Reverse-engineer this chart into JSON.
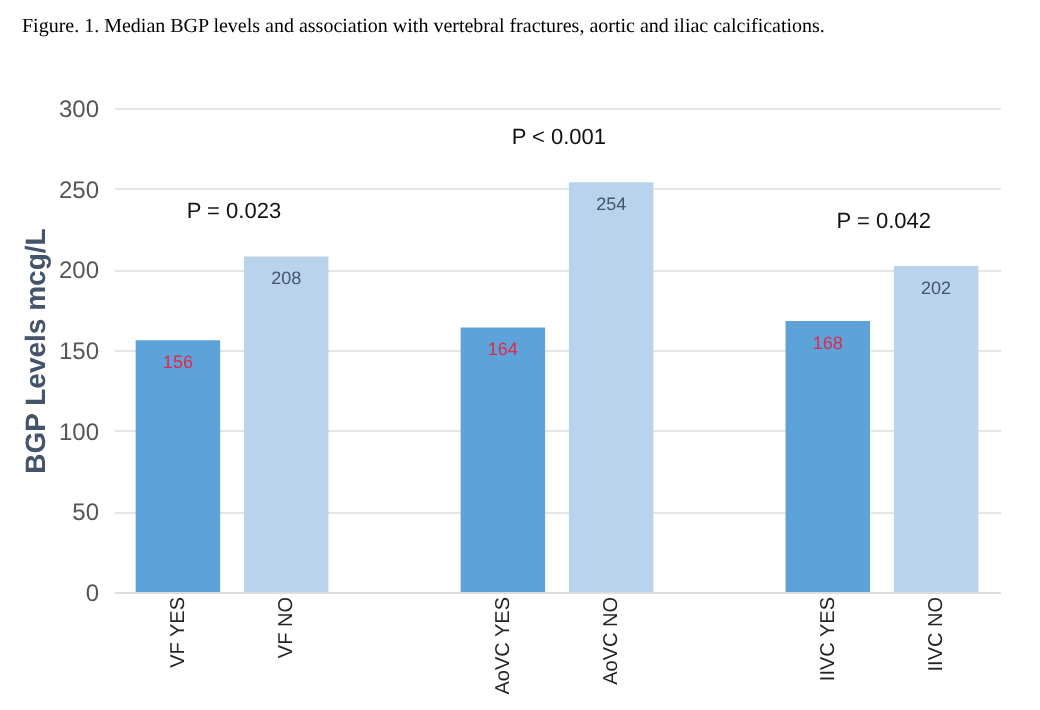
{
  "chart_data": {
    "type": "bar",
    "title": "Figure. 1. Median BGP levels and association with vertebral fractures, aortic and iliac calcifications.",
    "ylabel": "BGP Levels mcg/L",
    "categories": [
      "VF YES",
      "VF NO",
      null,
      "AoVC YES",
      "AoVC NO",
      null,
      "IIVC YES",
      "IIVC NO"
    ],
    "series": [
      {
        "color": "#5da2d8",
        "values": [
          156,
          null,
          null,
          164,
          null,
          null,
          168,
          null
        ]
      },
      {
        "color": "#b9d3ec",
        "values": [
          null,
          208,
          null,
          null,
          254,
          null,
          null,
          202
        ]
      }
    ],
    "data_labels": true,
    "ylim": [
      0,
      300
    ],
    "yticks": [
      0,
      50,
      100,
      150,
      200,
      250,
      300
    ],
    "grid": "y",
    "annotations": [
      "P = 0.023",
      "P < 0.001",
      "P = 0.042"
    ]
  }
}
